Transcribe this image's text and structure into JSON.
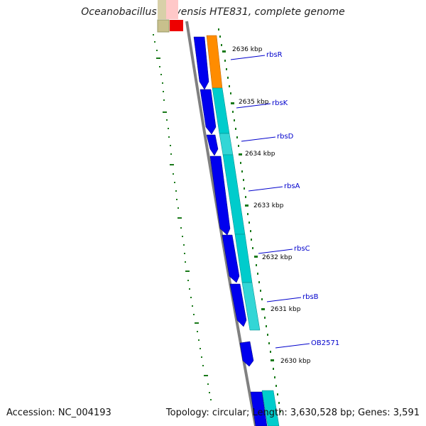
{
  "title": "Oceanobacillus iheyensis HTE831, complete genome",
  "footer": {
    "accession": "Accession: NC_004193",
    "stats": "Topology: circular; Length: 3,630,528 bp; Genes: 3,591"
  },
  "colors": {
    "forward_cds": "#0000ee",
    "rna_track": "#00cccc",
    "rna_track_light": "#66e0e0",
    "orange_feature": "#ff8c00",
    "red_feature": "#ee0000",
    "tan_feature": "#c8c08c",
    "backbone": "#808080",
    "ticks": "#1a7a1a",
    "label_line": "#0000cc"
  },
  "kbp_labels": [
    {
      "text": "2636 kbp",
      "name": "kbp-2636"
    },
    {
      "text": "2635 kbp",
      "name": "kbp-2635"
    },
    {
      "text": "2634 kbp",
      "name": "kbp-2634"
    },
    {
      "text": "2633 kbp",
      "name": "kbp-2633"
    },
    {
      "text": "2632 kbp",
      "name": "kbp-2632"
    },
    {
      "text": "2631 kbp",
      "name": "kbp-2631"
    },
    {
      "text": "2630 kbp",
      "name": "kbp-2630"
    }
  ],
  "genes": [
    {
      "name": "rbsR"
    },
    {
      "name": "rbsK"
    },
    {
      "name": "rbsD"
    },
    {
      "name": "rbsA"
    },
    {
      "name": "rbsC"
    },
    {
      "name": "rbsB"
    },
    {
      "name": "OB2571"
    }
  ]
}
